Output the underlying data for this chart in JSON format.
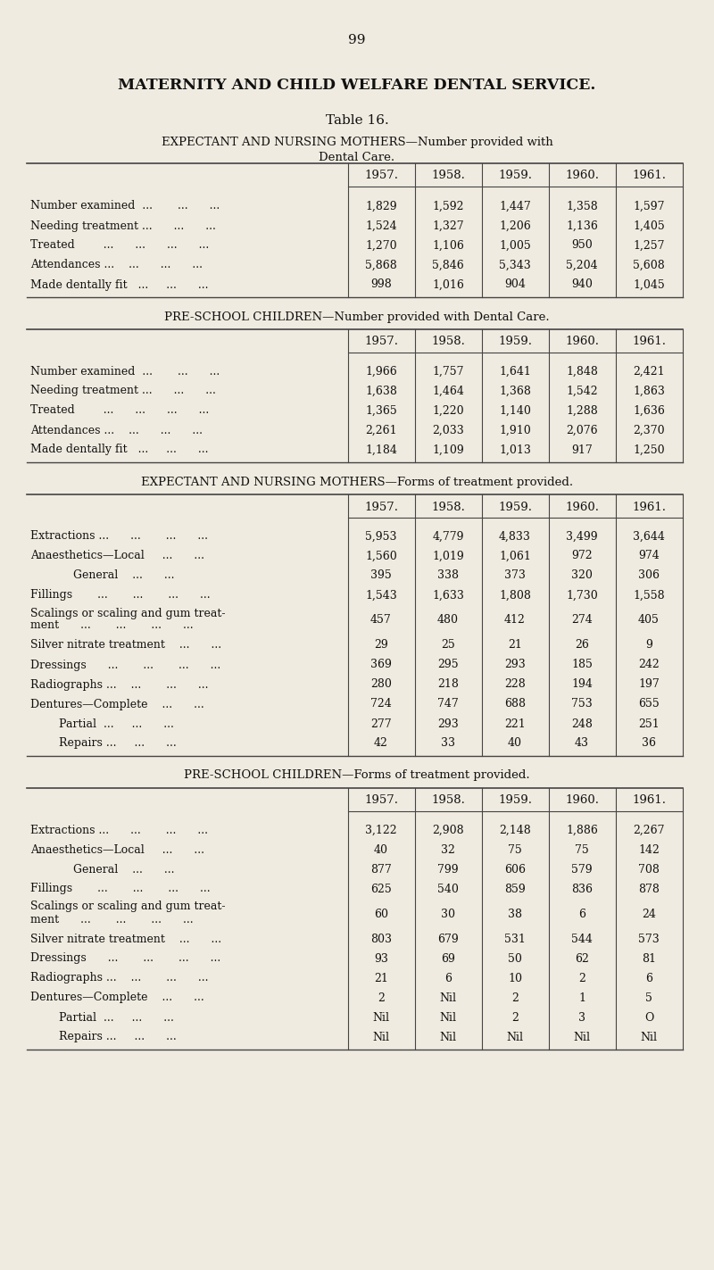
{
  "page_number": "99",
  "main_title": "MATERNITY AND CHILD WELFARE DENTAL SERVICE.",
  "table_title": "Table 16.",
  "bg_color": "#f0ebe0",
  "years": [
    "1957.",
    "1958.",
    "1959.",
    "1960.",
    "1961."
  ],
  "s1_title_line1": "EXPECTANT AND NURSING MOTHERS—Number provided with",
  "s1_title_line2": "Dental Care.",
  "s1_labels": [
    "Number examined  ...       ...      ...",
    "Needing treatment ...      ...      ...",
    "Treated        ...      ...      ...      ...",
    "Attendances ...    ...      ...      ...",
    "Made dentally fit   ...     ...      ..."
  ],
  "s1_values": [
    [
      "1,829",
      "1,592",
      "1,447",
      "1,358",
      "1,597"
    ],
    [
      "1,524",
      "1,327",
      "1,206",
      "1,136",
      "1,405"
    ],
    [
      "1,270",
      "1,106",
      "1,005",
      "950",
      "1,257"
    ],
    [
      "5,868",
      "5,846",
      "5,343",
      "5,204",
      "5,608"
    ],
    [
      "998",
      "1,016",
      "904",
      "940",
      "1,045"
    ]
  ],
  "s2_title": "PRE-SCHOOL CHILDREN—Number provided with Dental Care.",
  "s2_labels": [
    "Number examined  ...       ...      ...",
    "Needing treatment ...      ...      ...",
    "Treated        ...      ...      ...      ...",
    "Attendances ...    ...      ...      ...",
    "Made dentally fit   ...     ...      ..."
  ],
  "s2_values": [
    [
      "1,966",
      "1,757",
      "1,641",
      "1,848",
      "2,421"
    ],
    [
      "1,638",
      "1,464",
      "1,368",
      "1,542",
      "1,863"
    ],
    [
      "1,365",
      "1,220",
      "1,140",
      "1,288",
      "1,636"
    ],
    [
      "2,261",
      "2,033",
      "1,910",
      "2,076",
      "2,370"
    ],
    [
      "1,184",
      "1,109",
      "1,013",
      "917",
      "1,250"
    ]
  ],
  "s3_title": "EXPECTANT AND NURSING MOTHERS—Forms of treatment provided.",
  "s3_labels": [
    [
      "Extractions ...      ...       ...      ...",
      false
    ],
    [
      "Anaesthetics—Local     ...      ...",
      false
    ],
    [
      "            General    ...      ...",
      false
    ],
    [
      "Fillings       ...       ...       ...      ...",
      false
    ],
    [
      "Scalings or scaling and gum treat-|ment      ...       ...       ...      ...",
      true
    ],
    [
      "Silver nitrate treatment    ...      ...",
      false
    ],
    [
      "Dressings      ...       ...       ...      ...",
      false
    ],
    [
      "Radiographs ...    ...       ...      ...",
      false
    ],
    [
      "Dentures—Complete    ...      ...",
      false
    ],
    [
      "        Partial  ...     ...      ...",
      false
    ],
    [
      "        Repairs ...     ...      ...",
      false
    ]
  ],
  "s3_values": [
    [
      "5,953",
      "4,779",
      "4,833",
      "3,499",
      "3,644"
    ],
    [
      "1,560",
      "1,019",
      "1,061",
      "972",
      "974"
    ],
    [
      "395",
      "338",
      "373",
      "320",
      "306"
    ],
    [
      "1,543",
      "1,633",
      "1,808",
      "1,730",
      "1,558"
    ],
    [
      "457",
      "480",
      "412",
      "274",
      "405"
    ],
    [
      "29",
      "25",
      "21",
      "26",
      "9"
    ],
    [
      "369",
      "295",
      "293",
      "185",
      "242"
    ],
    [
      "280",
      "218",
      "228",
      "194",
      "197"
    ],
    [
      "724",
      "747",
      "688",
      "753",
      "655"
    ],
    [
      "277",
      "293",
      "221",
      "248",
      "251"
    ],
    [
      "42",
      "33",
      "40",
      "43",
      "36"
    ]
  ],
  "s4_title": "PRE-SCHOOL CHILDREN—Forms of treatment provided.",
  "s4_labels": [
    [
      "Extractions ...      ...       ...      ...",
      false
    ],
    [
      "Anaesthetics—Local     ...      ...",
      false
    ],
    [
      "            General    ...      ...",
      false
    ],
    [
      "Fillings       ...       ...       ...      ...",
      false
    ],
    [
      "Scalings or scaling and gum treat-|ment      ...       ...       ...      ...",
      true
    ],
    [
      "Silver nitrate treatment    ...      ...",
      false
    ],
    [
      "Dressings      ...       ...       ...      ...",
      false
    ],
    [
      "Radiographs ...    ...       ...      ...",
      false
    ],
    [
      "Dentures—Complete    ...      ...",
      false
    ],
    [
      "        Partial  ...     ...      ...",
      false
    ],
    [
      "        Repairs ...     ...      ...",
      false
    ]
  ],
  "s4_values": [
    [
      "3,122",
      "2,908",
      "2,148",
      "1,886",
      "2,267"
    ],
    [
      "40",
      "32",
      "75",
      "75",
      "142"
    ],
    [
      "877",
      "799",
      "606",
      "579",
      "708"
    ],
    [
      "625",
      "540",
      "859",
      "836",
      "878"
    ],
    [
      "60",
      "30",
      "38",
      "6",
      "24"
    ],
    [
      "803",
      "679",
      "531",
      "544",
      "573"
    ],
    [
      "93",
      "69",
      "50",
      "62",
      "81"
    ],
    [
      "21",
      "6",
      "10",
      "2",
      "6"
    ],
    [
      "2",
      "Nil",
      "2",
      "1",
      "5"
    ],
    [
      "Nil",
      "Nil",
      "2",
      "3",
      "O"
    ],
    [
      "Nil",
      "Nil",
      "Nil",
      "Nil",
      "Nil"
    ]
  ]
}
